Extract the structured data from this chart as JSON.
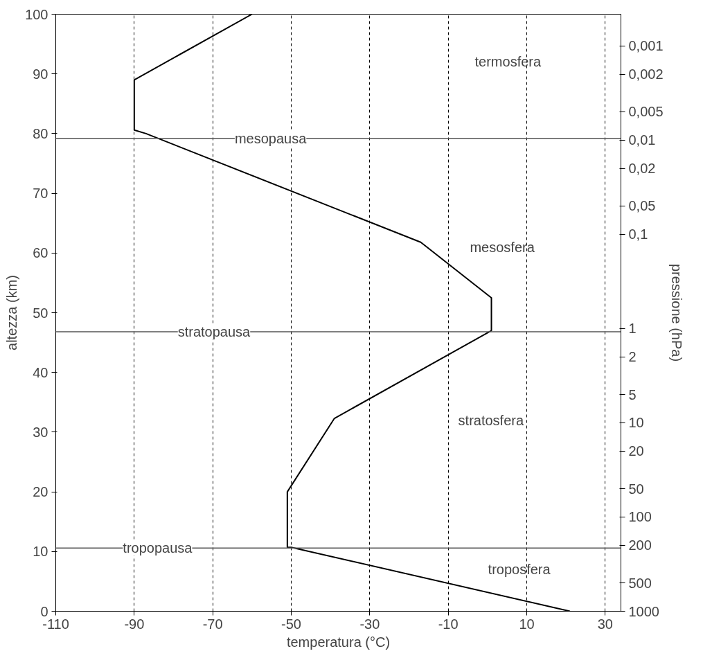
{
  "chart_data": {
    "type": "line",
    "xlabel": "temperatura (°C)",
    "ylabel": "altezza (km)",
    "y2label": "pressione (hPa)",
    "series": [
      {
        "color": "#000000",
        "x": [
          21,
          -50,
          -51,
          -51,
          -39,
          1,
          1,
          -17,
          -87,
          -90,
          -90,
          -60
        ],
        "values": [
          0,
          10.7,
          10.7,
          20,
          32.3,
          47,
          52.5,
          61.8,
          80,
          80.6,
          89,
          100
        ]
      }
    ],
    "xlim": [
      -110,
      34
    ],
    "ylim": [
      0,
      100
    ],
    "xticks": [
      -110,
      -90,
      -70,
      -50,
      -30,
      -10,
      10,
      30
    ],
    "yticks": [
      0,
      10,
      20,
      30,
      40,
      50,
      60,
      70,
      80,
      90,
      100
    ],
    "y2lim": [
      1000,
      0.00046
    ],
    "log": "y2",
    "y2ticks": [
      1000,
      500,
      200,
      100,
      50,
      20,
      10,
      5,
      2,
      1,
      {
        "value": 0.1,
        "label": "0,1"
      },
      {
        "value": 0.05,
        "label": "0,05"
      },
      {
        "value": 0.02,
        "label": "0,02"
      },
      {
        "value": 0.01,
        "label": "0,01"
      },
      {
        "value": 0.005,
        "label": "0,005"
      },
      {
        "value": 0.002,
        "label": "0,002"
      },
      {
        "value": 0.001,
        "label": "0,001"
      }
    ],
    "ref_lines": [
      {
        "axis": "y",
        "value": 79.2,
        "label": "mesopausa",
        "color": "#555555"
      },
      {
        "axis": "y",
        "value": 46.8,
        "label": "stratopausa",
        "color": "#555555"
      },
      {
        "axis": "y",
        "value": 10.6,
        "label": "tropopausa",
        "color": "#555555"
      }
    ],
    "annotations": [
      "termosfera",
      "mesosfera",
      "stratosfera",
      "troposfera"
    ],
    "grid": "x",
    "line_style": "solid",
    "marker": "none"
  }
}
